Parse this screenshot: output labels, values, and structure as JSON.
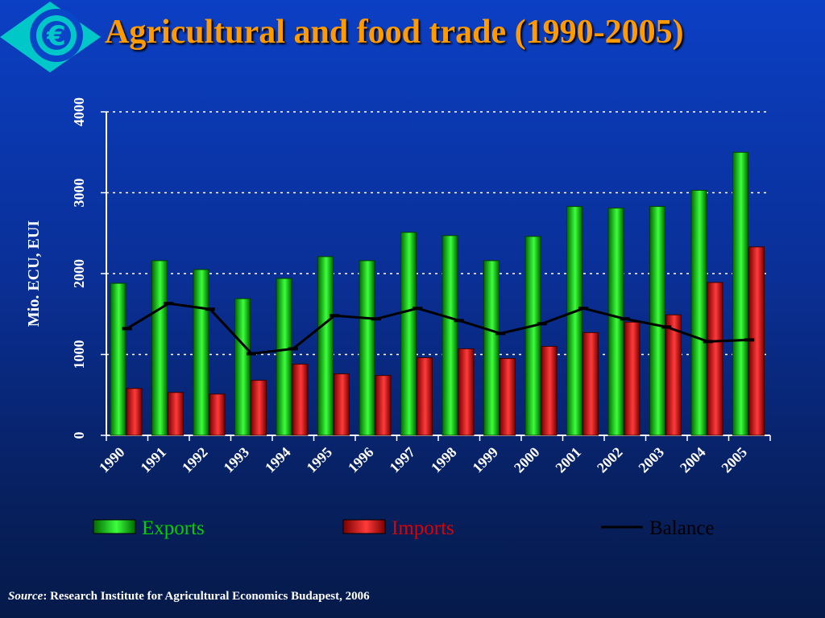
{
  "title": "Agricultural and food trade (1990-2005)",
  "logo": {
    "icon": "euro-logo-icon",
    "glyph": "€"
  },
  "source": {
    "label": "Source",
    "text": ": Research Institute for Agricultural Economics Budapest, 2006"
  },
  "colors": {
    "exports": "#00d000",
    "imports": "#e00000",
    "balance": "#000000",
    "title": "#ff9a00"
  },
  "chart_data": {
    "type": "bar",
    "ylabel": "Mio. ECU, EUI",
    "xlabel": "",
    "ylim": [
      0,
      4000
    ],
    "yticks": [
      0,
      1000,
      2000,
      3000,
      4000
    ],
    "grid": true,
    "legend": "bottom",
    "categories": [
      "1990",
      "1991",
      "1992",
      "1993",
      "1994",
      "1995",
      "1996",
      "1997",
      "1998",
      "1999",
      "2000",
      "2001",
      "2002",
      "2003",
      "2004",
      "2005"
    ],
    "series": [
      {
        "name": "Exports",
        "kind": "bar",
        "values": [
          1880,
          2160,
          2050,
          1690,
          1940,
          2210,
          2160,
          2510,
          2470,
          2160,
          2460,
          2830,
          2810,
          2830,
          3030,
          3500
        ]
      },
      {
        "name": "Imports",
        "kind": "bar",
        "values": [
          580,
          530,
          510,
          680,
          880,
          760,
          740,
          960,
          1070,
          950,
          1100,
          1270,
          1400,
          1490,
          1890,
          2330
        ]
      },
      {
        "name": "Balance",
        "kind": "line",
        "values": [
          1320,
          1630,
          1560,
          1010,
          1070,
          1480,
          1440,
          1570,
          1420,
          1260,
          1380,
          1570,
          1440,
          1340,
          1160,
          1180
        ]
      }
    ]
  }
}
